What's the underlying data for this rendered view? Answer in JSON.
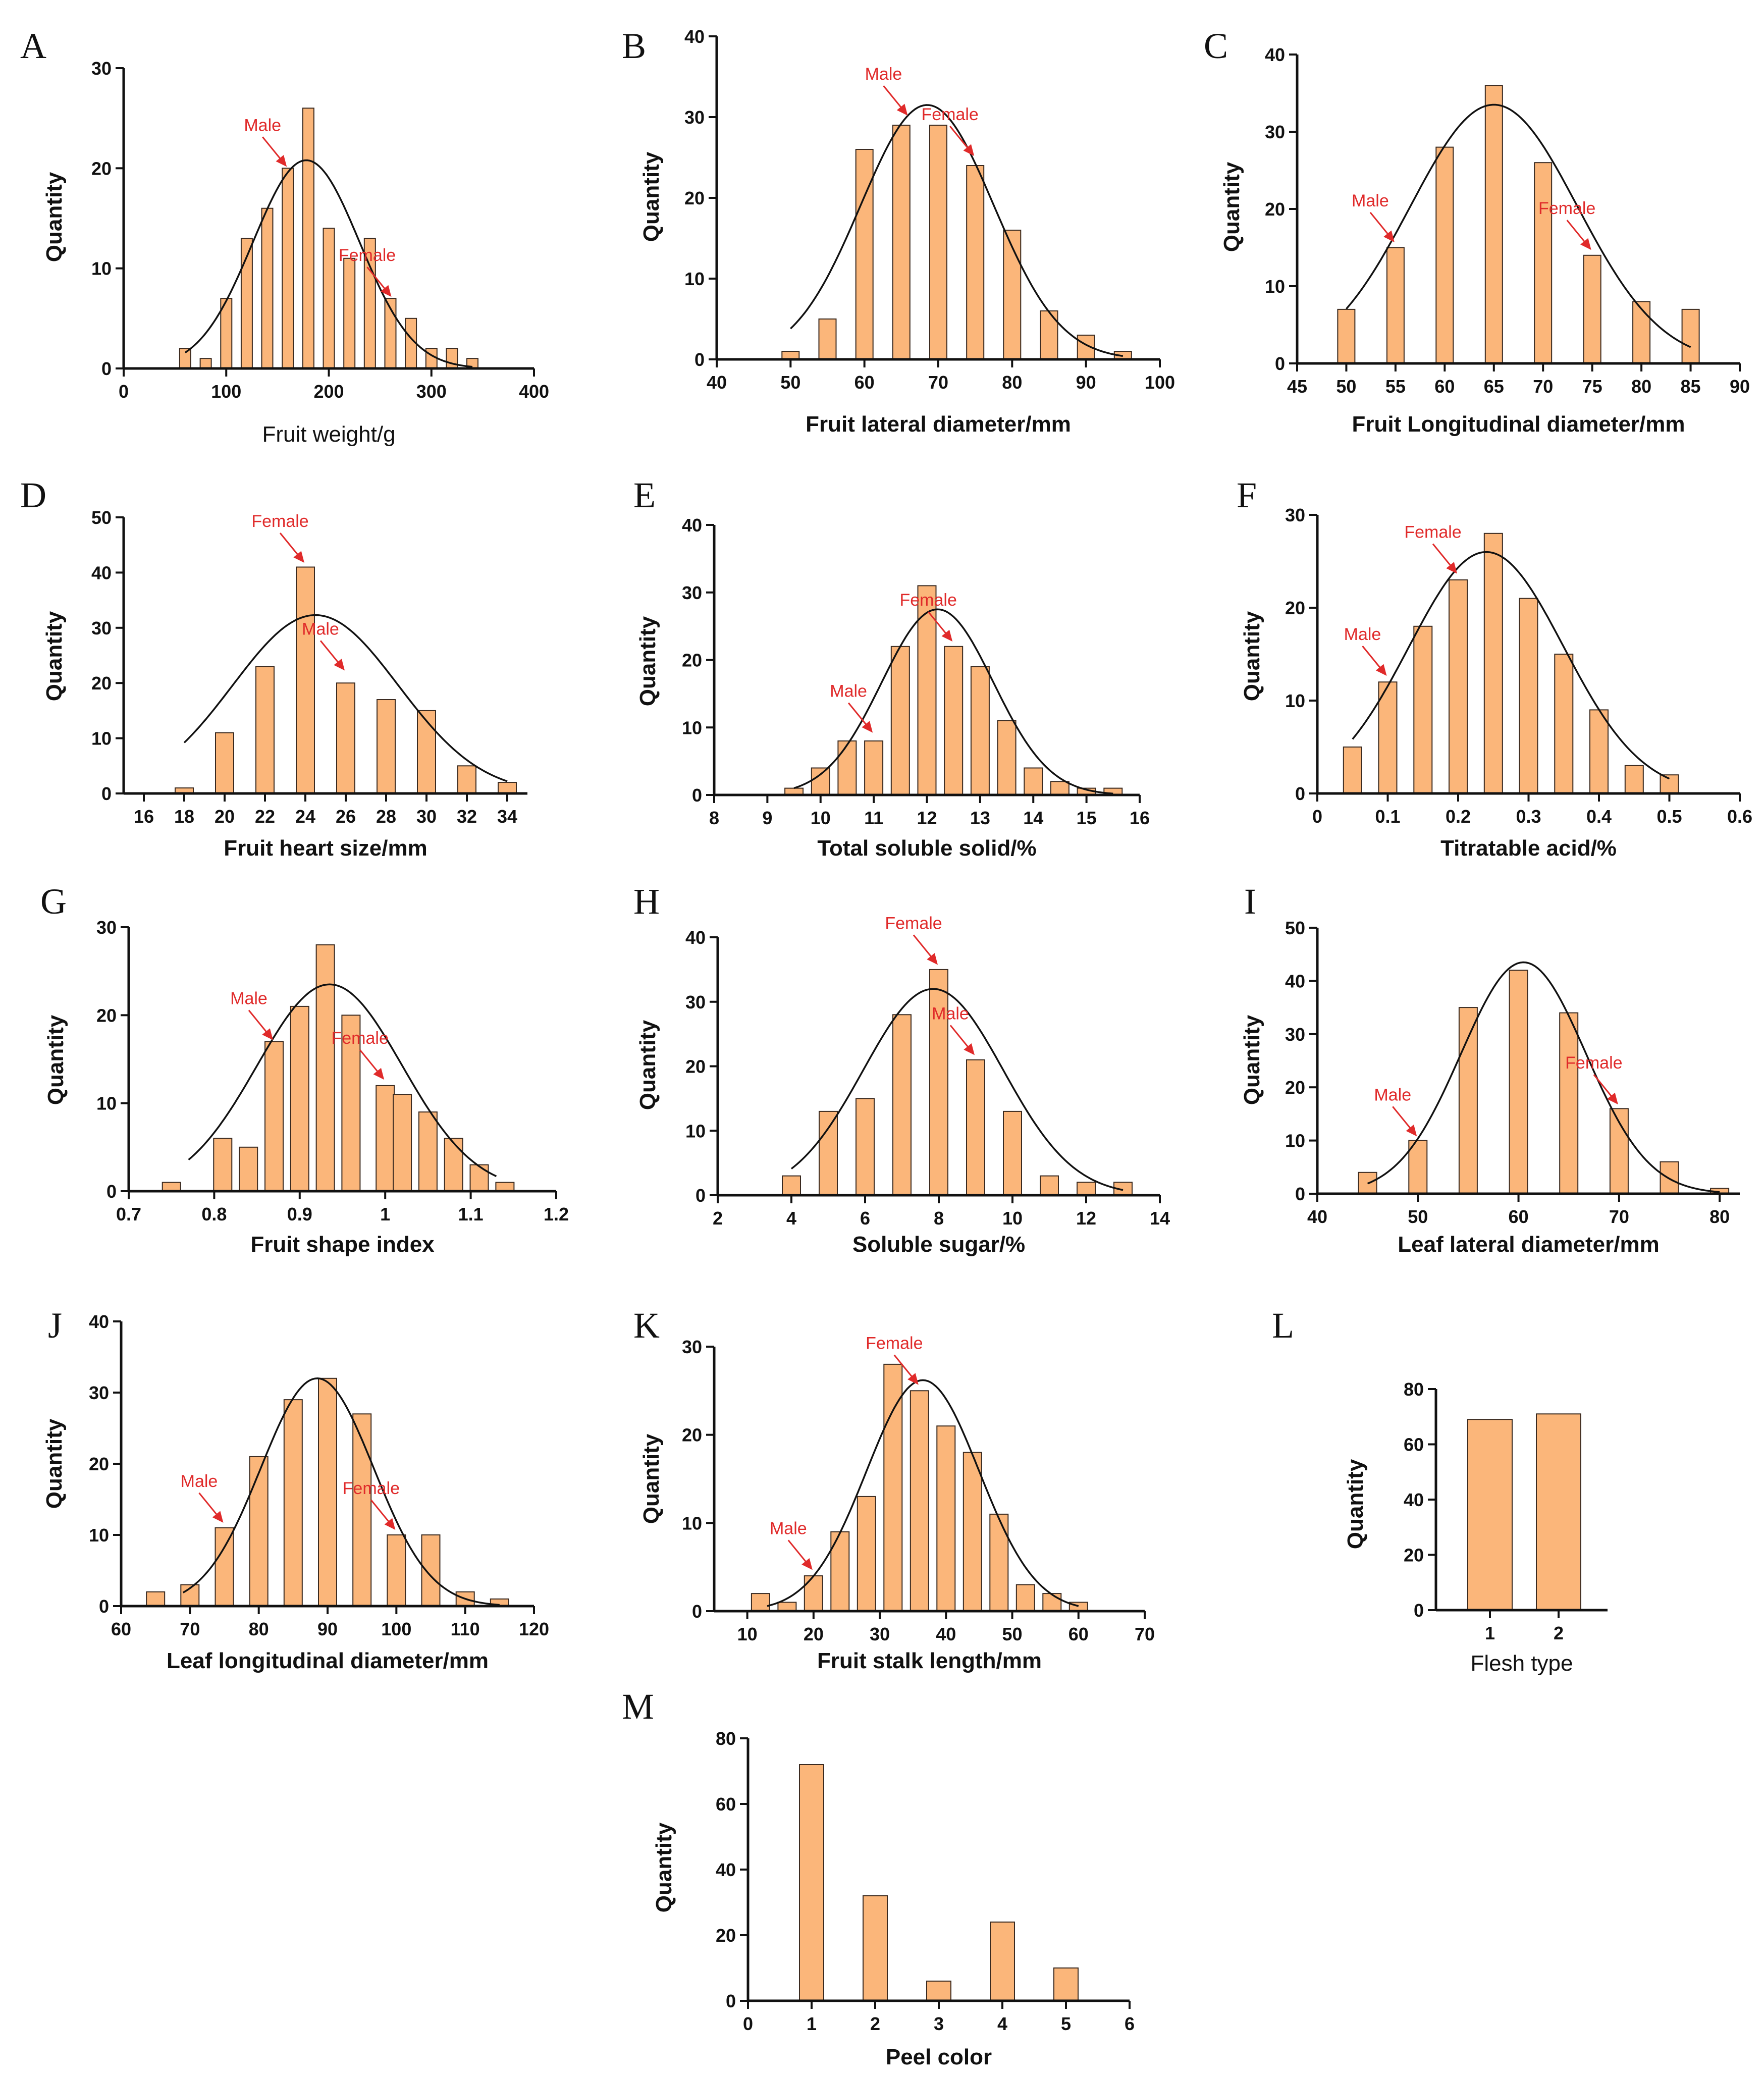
{
  "colors": {
    "bar": "#fbb67a",
    "bar_edge": "#3a2a20",
    "curve": "#111111",
    "annotation": "#e02a2a"
  },
  "chart_data": [
    {
      "id": "A",
      "panel_label": "A",
      "type": "bar",
      "xlabel": "Fruit weight/g",
      "ylabel": "Quantity",
      "xlim": [
        0,
        400
      ],
      "ylim": [
        0,
        30
      ],
      "xticks": [
        0,
        100,
        200,
        300,
        400
      ],
      "yticks": [
        0,
        10,
        20,
        30
      ],
      "x": [
        60,
        80,
        100,
        120,
        140,
        160,
        180,
        200,
        220,
        240,
        260,
        280,
        300,
        320,
        340
      ],
      "values": [
        2,
        1,
        7,
        13,
        16,
        20,
        26,
        14,
        11,
        13,
        7,
        5,
        2,
        2,
        1
      ],
      "normal_fit": {
        "mean": 178,
        "sd": 52,
        "peak": 20.8
      },
      "annotations": [
        {
          "text": "Male",
          "x": 160,
          "y": 20
        },
        {
          "text": "Female",
          "x": 262,
          "y": 7
        }
      ]
    },
    {
      "id": "B",
      "panel_label": "B",
      "type": "bar",
      "xlabel": "Fruit lateral diameter/mm",
      "ylabel": "Quantity",
      "xlim": [
        40,
        100
      ],
      "ylim": [
        0,
        40
      ],
      "xticks": [
        40,
        50,
        60,
        70,
        80,
        90,
        100
      ],
      "yticks": [
        0,
        10,
        20,
        30,
        40
      ],
      "x": [
        50,
        55,
        60,
        65,
        70,
        75,
        80,
        85,
        90,
        95
      ],
      "values": [
        1,
        5,
        26,
        29,
        29,
        24,
        16,
        6,
        3,
        1
      ],
      "normal_fit": {
        "mean": 68.5,
        "sd": 9,
        "peak": 31.5,
        "range": [
          50,
          95
        ]
      },
      "annotations": [
        {
          "text": "Male",
          "x": 66,
          "y": 30
        },
        {
          "text": "Female",
          "x": 75,
          "y": 25
        }
      ]
    },
    {
      "id": "C",
      "panel_label": "C",
      "type": "bar",
      "xlabel": "Fruit Longitudinal diameter/mm",
      "ylabel": "Quantity",
      "xlim": [
        45,
        90
      ],
      "ylim": [
        0,
        40
      ],
      "xticks": [
        45,
        50,
        55,
        60,
        65,
        70,
        75,
        80,
        85,
        90
      ],
      "yticks": [
        0,
        10,
        20,
        30,
        40
      ],
      "x": [
        50,
        55,
        60,
        65,
        70,
        75,
        80,
        85
      ],
      "values": [
        7,
        15,
        28,
        36,
        26,
        14,
        8,
        7
      ],
      "normal_fit": {
        "mean": 65,
        "sd": 8.5,
        "peak": 33.5,
        "range": [
          50,
          85
        ]
      },
      "annotations": [
        {
          "text": "Male",
          "x": 55,
          "y": 15.5
        },
        {
          "text": "Female",
          "x": 75,
          "y": 14.5
        }
      ]
    },
    {
      "id": "D",
      "panel_label": "D",
      "type": "bar",
      "xlabel": "Fruit heart size/mm",
      "ylabel": "Quantity",
      "xlim": [
        15,
        35
      ],
      "ylim": [
        0,
        50
      ],
      "xticks": [
        16,
        18,
        20,
        22,
        24,
        26,
        28,
        30,
        32,
        34
      ],
      "yticks": [
        0,
        10,
        20,
        30,
        40,
        50
      ],
      "x": [
        18,
        20,
        22,
        24,
        26,
        28,
        30,
        32,
        34
      ],
      "values": [
        1,
        11,
        23,
        41,
        20,
        17,
        15,
        5,
        2
      ],
      "normal_fit": {
        "mean": 24.5,
        "sd": 4.1,
        "peak": 32.3,
        "range": [
          18,
          34
        ]
      },
      "annotations": [
        {
          "text": "Female",
          "x": 24,
          "y": 41.5
        },
        {
          "text": "Male",
          "x": 26,
          "y": 22
        }
      ]
    },
    {
      "id": "E",
      "panel_label": "E",
      "type": "bar",
      "xlabel": "Total soluble solid/%",
      "ylabel": "Quantity",
      "xlim": [
        8,
        16
      ],
      "ylim": [
        0,
        40
      ],
      "xticks": [
        8,
        9,
        10,
        11,
        12,
        13,
        14,
        15,
        16
      ],
      "yticks": [
        0,
        10,
        20,
        30,
        40
      ],
      "x": [
        9.5,
        10,
        10.5,
        11,
        11.5,
        12,
        12.5,
        13,
        13.5,
        14,
        14.5,
        15,
        15.5
      ],
      "values": [
        1,
        4,
        8,
        8,
        22,
        31,
        22,
        19,
        11,
        4,
        2,
        1,
        1
      ],
      "normal_fit": {
        "mean": 12.2,
        "sd": 1.05,
        "peak": 27.5,
        "range": [
          9.5,
          15.5
        ]
      },
      "annotations": [
        {
          "text": "Male",
          "x": 11,
          "y": 9
        },
        {
          "text": "Female",
          "x": 12.5,
          "y": 22.5
        }
      ]
    },
    {
      "id": "F",
      "panel_label": "F",
      "type": "bar",
      "xlabel": "Titratable acid/%",
      "ylabel": "Quantity",
      "xlim": [
        0,
        0.6
      ],
      "ylim": [
        0,
        30
      ],
      "xticks": [
        0.0,
        0.1,
        0.2,
        0.3,
        0.4,
        0.5,
        0.6
      ],
      "yticks": [
        0,
        10,
        20,
        30
      ],
      "x": [
        0.05,
        0.1,
        0.15,
        0.2,
        0.25,
        0.3,
        0.35,
        0.4,
        0.45,
        0.5
      ],
      "values": [
        5,
        12,
        18,
        23,
        28,
        21,
        15,
        9,
        3,
        2
      ],
      "normal_fit": {
        "mean": 0.24,
        "sd": 0.11,
        "peak": 26,
        "range": [
          0.05,
          0.5
        ]
      },
      "annotations": [
        {
          "text": "Male",
          "x": 0.1,
          "y": 12.5
        },
        {
          "text": "Female",
          "x": 0.2,
          "y": 23.5
        }
      ]
    },
    {
      "id": "G",
      "panel_label": "G",
      "type": "bar",
      "xlabel": "Fruit shape index",
      "ylabel": "Quantity",
      "xlim": [
        0.7,
        1.2
      ],
      "ylim": [
        0,
        30
      ],
      "xticks": [
        0.7,
        0.8,
        0.9,
        1.0,
        1.1,
        1.2
      ],
      "yticks": [
        0,
        10,
        20,
        30
      ],
      "x": [
        0.75,
        0.81,
        0.84,
        0.87,
        0.9,
        0.93,
        0.96,
        1.0,
        1.02,
        1.05,
        1.08,
        1.11,
        1.14
      ],
      "values": [
        1,
        6,
        5,
        17,
        21,
        28,
        20,
        12,
        11,
        9,
        6,
        3,
        1
      ],
      "normal_fit": {
        "mean": 0.935,
        "sd": 0.085,
        "peak": 23.5,
        "range": [
          0.77,
          1.13
        ]
      },
      "annotations": [
        {
          "text": "Male",
          "x": 0.87,
          "y": 17
        },
        {
          "text": "Female",
          "x": 1.0,
          "y": 12.5
        }
      ]
    },
    {
      "id": "H",
      "panel_label": "H",
      "type": "bar",
      "xlabel": "Soluble sugar/%",
      "ylabel": "Quantity",
      "xlim": [
        2,
        14
      ],
      "ylim": [
        0,
        40
      ],
      "xticks": [
        2,
        4,
        6,
        8,
        10,
        12,
        14
      ],
      "yticks": [
        0,
        10,
        20,
        30,
        40
      ],
      "x": [
        4,
        5,
        6,
        7,
        8,
        9,
        10,
        11,
        12,
        13
      ],
      "values": [
        3,
        13,
        15,
        28,
        35,
        21,
        13,
        3,
        2,
        2
      ],
      "normal_fit": {
        "mean": 7.85,
        "sd": 1.9,
        "peak": 32,
        "range": [
          4,
          13
        ]
      },
      "annotations": [
        {
          "text": "Female",
          "x": 8,
          "y": 35.5
        },
        {
          "text": "Male",
          "x": 9,
          "y": 21.5
        }
      ]
    },
    {
      "id": "I",
      "panel_label": "I",
      "type": "bar",
      "xlabel": "Leaf lateral diameter/mm",
      "ylabel": "Quantity",
      "xlim": [
        40,
        82
      ],
      "ylim": [
        0,
        50
      ],
      "xticks": [
        40,
        50,
        60,
        70,
        80
      ],
      "yticks": [
        0,
        10,
        20,
        30,
        40,
        50
      ],
      "x": [
        45,
        50,
        55,
        60,
        65,
        70,
        75,
        80
      ],
      "values": [
        4,
        10,
        35,
        42,
        34,
        16,
        6,
        1
      ],
      "normal_fit": {
        "mean": 60.5,
        "sd": 6.2,
        "peak": 43.5,
        "range": [
          45,
          80
        ]
      },
      "annotations": [
        {
          "text": "Male",
          "x": 50,
          "y": 10.5
        },
        {
          "text": "Female",
          "x": 70,
          "y": 16.5
        }
      ]
    },
    {
      "id": "J",
      "panel_label": "J",
      "type": "bar",
      "xlabel": "Leaf longitudinal diameter/mm",
      "ylabel": "Quantity",
      "xlim": [
        60,
        120
      ],
      "ylim": [
        0,
        40
      ],
      "xticks": [
        60,
        70,
        80,
        90,
        100,
        110,
        120
      ],
      "yticks": [
        0,
        10,
        20,
        30,
        40
      ],
      "x": [
        65,
        70,
        75,
        80,
        85,
        90,
        95,
        100,
        105,
        110,
        115
      ],
      "values": [
        2,
        3,
        11,
        21,
        29,
        32,
        27,
        10,
        10,
        2,
        1
      ],
      "normal_fit": {
        "mean": 88.5,
        "sd": 8.2,
        "peak": 32,
        "range": [
          69,
          115
        ]
      },
      "annotations": [
        {
          "text": "Male",
          "x": 75,
          "y": 11.5
        },
        {
          "text": "Female",
          "x": 100,
          "y": 10.5
        }
      ]
    },
    {
      "id": "K",
      "panel_label": "K",
      "type": "bar",
      "xlabel": "Fruit stalk length/mm",
      "ylabel": "Quantity",
      "xlim": [
        5,
        70
      ],
      "ylim": [
        0,
        30
      ],
      "xticks": [
        10,
        20,
        30,
        40,
        50,
        60,
        70
      ],
      "yticks": [
        0,
        10,
        20,
        30
      ],
      "x": [
        12,
        16,
        20,
        24,
        28,
        32,
        36,
        40,
        44,
        48,
        52,
        56,
        60
      ],
      "values": [
        2,
        1,
        4,
        9,
        13,
        28,
        25,
        21,
        18,
        11,
        3,
        2,
        1
      ],
      "normal_fit": {
        "mean": 36.5,
        "sd": 8.5,
        "peak": 26.2,
        "range": [
          13,
          60
        ]
      },
      "annotations": [
        {
          "text": "Male",
          "x": 20,
          "y": 4.5
        },
        {
          "text": "Female",
          "x": 36,
          "y": 25.5
        }
      ]
    },
    {
      "id": "L",
      "panel_label": "L",
      "type": "bar",
      "xlabel": "Flesh type",
      "ylabel": "Quantity",
      "ylim": [
        0,
        80
      ],
      "yticks": [
        0,
        20,
        40,
        60,
        80
      ],
      "categories": [
        "1",
        "2"
      ],
      "values": [
        69,
        71
      ]
    },
    {
      "id": "M",
      "panel_label": "M",
      "type": "bar",
      "xlabel": "Peel color",
      "ylabel": "Quantity",
      "xlim": [
        0,
        6
      ],
      "ylim": [
        0,
        80
      ],
      "xticks": [
        0,
        1,
        2,
        3,
        4,
        5,
        6
      ],
      "yticks": [
        0,
        20,
        40,
        60,
        80
      ],
      "x": [
        1,
        2,
        3,
        4,
        5
      ],
      "values": [
        72,
        32,
        6,
        24,
        10
      ]
    }
  ]
}
